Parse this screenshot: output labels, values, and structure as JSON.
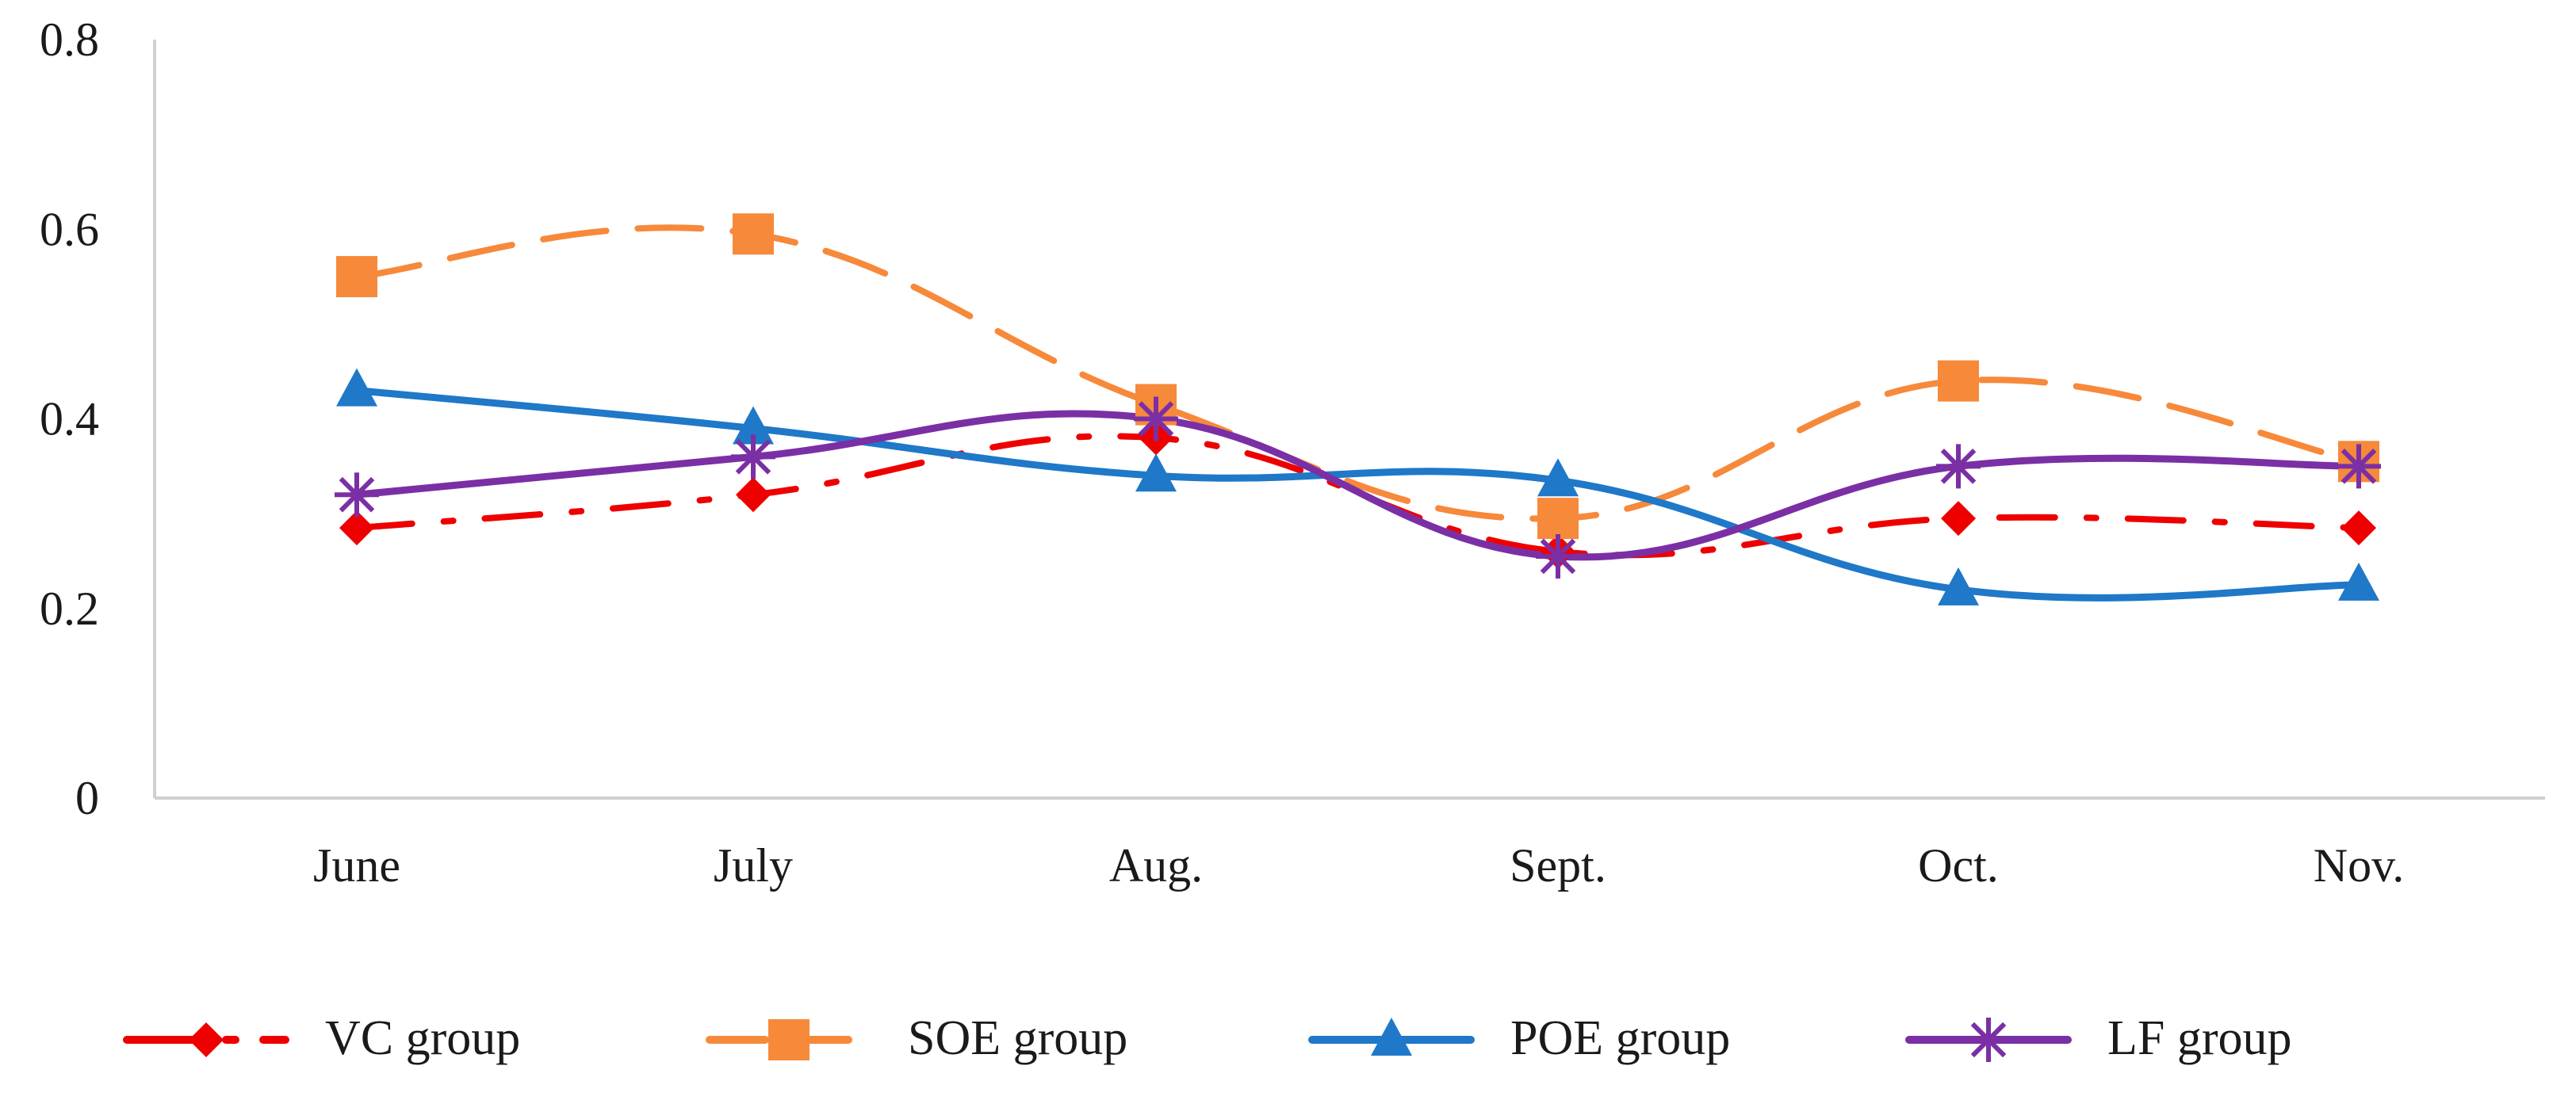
{
  "chart_data": {
    "type": "line",
    "title": "",
    "xlabel": "",
    "ylabel": "",
    "categories": [
      "June",
      "July",
      "Aug.",
      "Sept.",
      "Oct.",
      "Nov."
    ],
    "ylim": [
      0,
      0.8
    ],
    "yticks": [
      0,
      0.2,
      0.4,
      0.6,
      0.8
    ],
    "ytick_labels": [
      "0",
      "0.2",
      "0.4",
      "0.6",
      "0.8"
    ],
    "grid": false,
    "smooth": true,
    "legend_position": "bottom",
    "series": [
      {
        "name": "VC group",
        "values": [
          0.285,
          0.32,
          0.38,
          0.26,
          0.295,
          0.285
        ],
        "color": "#ee0000",
        "marker": "diamond",
        "dash": "dash-dot"
      },
      {
        "name": "SOE group",
        "values": [
          0.55,
          0.595,
          0.415,
          0.295,
          0.44,
          0.355
        ],
        "color": "#f7893b",
        "marker": "square",
        "dash": "dash"
      },
      {
        "name": "POE group",
        "values": [
          0.43,
          0.39,
          0.34,
          0.335,
          0.22,
          0.225
        ],
        "color": "#1f78c8",
        "marker": "triangle",
        "dash": "solid"
      },
      {
        "name": "LF group",
        "values": [
          0.32,
          0.36,
          0.4,
          0.255,
          0.35,
          0.35
        ],
        "color": "#7b2fa5",
        "marker": "star",
        "dash": "solid"
      }
    ]
  }
}
